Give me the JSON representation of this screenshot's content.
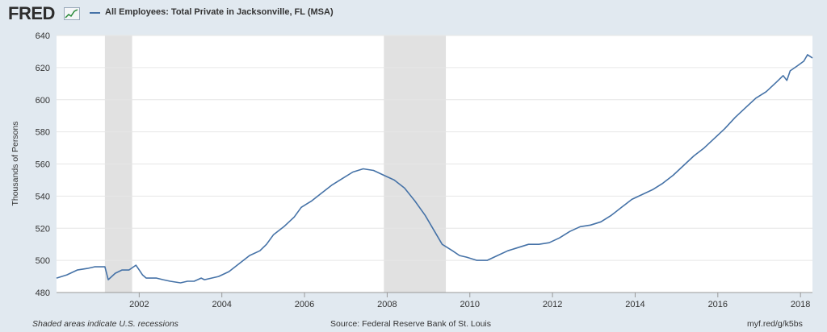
{
  "header": {
    "logo_text": "FRED",
    "logo_icon": "fred-sparkline-icon",
    "series_color": "#4572a7"
  },
  "footer": {
    "note": "Shaded areas indicate U.S. recessions",
    "source": "Source: Federal Reserve Bank of St. Louis",
    "url": "myf.red/g/k5bs"
  },
  "chart_data": {
    "type": "line",
    "title": "All Employees: Total Private in Jacksonville, FL (MSA)",
    "xlabel": "",
    "ylabel": "Thousands of Persons",
    "xlim": [
      2000.0,
      2018.29
    ],
    "ylim": [
      480,
      640
    ],
    "x_ticks": [
      "2002",
      "2004",
      "2006",
      "2008",
      "2010",
      "2012",
      "2014",
      "2016",
      "2018"
    ],
    "y_ticks": [
      "480",
      "500",
      "520",
      "540",
      "560",
      "580",
      "600",
      "620",
      "640"
    ],
    "grid": true,
    "legend": "top-left",
    "background": "#ffffff",
    "recession_color": "#e1e1e1",
    "recessions": [
      [
        2001.17,
        2001.83
      ],
      [
        2007.92,
        2009.42
      ]
    ],
    "series": [
      {
        "name": "All Employees: Total Private in Jacksonville, FL (MSA)",
        "color": "#4572a7",
        "points": [
          [
            2000.0,
            489
          ],
          [
            2000.25,
            491
          ],
          [
            2000.5,
            494
          ],
          [
            2000.75,
            495
          ],
          [
            2000.92,
            496
          ],
          [
            2001.08,
            496
          ],
          [
            2001.17,
            496
          ],
          [
            2001.25,
            488
          ],
          [
            2001.42,
            492
          ],
          [
            2001.58,
            494
          ],
          [
            2001.75,
            494
          ],
          [
            2001.92,
            497
          ],
          [
            2002.0,
            494
          ],
          [
            2002.08,
            491
          ],
          [
            2002.17,
            489
          ],
          [
            2002.42,
            489
          ],
          [
            2002.58,
            488
          ],
          [
            2002.75,
            487
          ],
          [
            2003.0,
            486
          ],
          [
            2003.17,
            487
          ],
          [
            2003.33,
            487
          ],
          [
            2003.5,
            489
          ],
          [
            2003.58,
            488
          ],
          [
            2003.75,
            489
          ],
          [
            2003.92,
            490
          ],
          [
            2004.17,
            493
          ],
          [
            2004.42,
            498
          ],
          [
            2004.67,
            503
          ],
          [
            2004.92,
            506
          ],
          [
            2005.08,
            510
          ],
          [
            2005.25,
            516
          ],
          [
            2005.5,
            521
          ],
          [
            2005.75,
            527
          ],
          [
            2005.92,
            533
          ],
          [
            2006.17,
            537
          ],
          [
            2006.42,
            542
          ],
          [
            2006.67,
            547
          ],
          [
            2006.92,
            551
          ],
          [
            2007.17,
            555
          ],
          [
            2007.42,
            557
          ],
          [
            2007.67,
            556
          ],
          [
            2007.92,
            553
          ],
          [
            2008.17,
            550
          ],
          [
            2008.42,
            545
          ],
          [
            2008.67,
            537
          ],
          [
            2008.92,
            528
          ],
          [
            2009.17,
            517
          ],
          [
            2009.33,
            510
          ],
          [
            2009.58,
            506
          ],
          [
            2009.75,
            503
          ],
          [
            2009.92,
            502
          ],
          [
            2010.17,
            500
          ],
          [
            2010.42,
            500
          ],
          [
            2010.67,
            503
          ],
          [
            2010.92,
            506
          ],
          [
            2011.17,
            508
          ],
          [
            2011.42,
            510
          ],
          [
            2011.67,
            510
          ],
          [
            2011.92,
            511
          ],
          [
            2012.17,
            514
          ],
          [
            2012.42,
            518
          ],
          [
            2012.67,
            521
          ],
          [
            2012.92,
            522
          ],
          [
            2013.17,
            524
          ],
          [
            2013.42,
            528
          ],
          [
            2013.67,
            533
          ],
          [
            2013.92,
            538
          ],
          [
            2014.17,
            541
          ],
          [
            2014.42,
            544
          ],
          [
            2014.67,
            548
          ],
          [
            2014.92,
            553
          ],
          [
            2015.17,
            559
          ],
          [
            2015.42,
            565
          ],
          [
            2015.67,
            570
          ],
          [
            2015.92,
            576
          ],
          [
            2016.17,
            582
          ],
          [
            2016.42,
            589
          ],
          [
            2016.67,
            595
          ],
          [
            2016.92,
            601
          ],
          [
            2017.17,
            605
          ],
          [
            2017.42,
            611
          ],
          [
            2017.58,
            615
          ],
          [
            2017.67,
            612
          ],
          [
            2017.75,
            618
          ],
          [
            2017.92,
            621
          ],
          [
            2018.08,
            624
          ],
          [
            2018.17,
            628
          ],
          [
            2018.29,
            626
          ]
        ]
      }
    ]
  }
}
